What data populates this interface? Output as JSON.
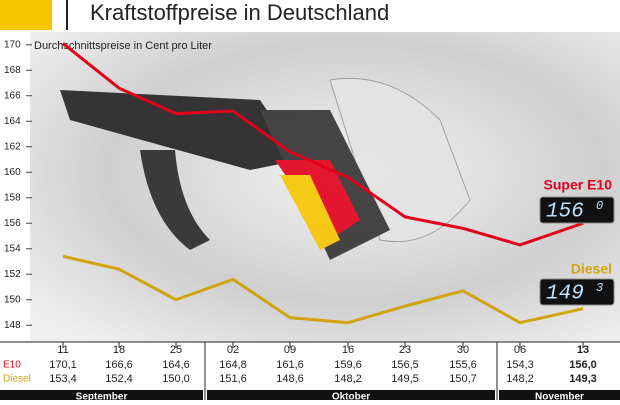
{
  "chart_data": {
    "type": "line",
    "title": "Kraftstoffpreise in Deutschland",
    "subtitle": "Durchschnittspreise in Cent pro Liter",
    "categories": [
      "11",
      "18",
      "25",
      "02",
      "09",
      "16",
      "23",
      "30",
      "06",
      "13"
    ],
    "months": [
      "September",
      "Oktober",
      "November"
    ],
    "ylim": [
      147,
      171
    ],
    "yticks": [
      148,
      150,
      152,
      154,
      156,
      158,
      160,
      162,
      164,
      166,
      168,
      170
    ],
    "series": [
      {
        "name": "Super E10",
        "short_name": "E10",
        "color": "#e2001a",
        "values": [
          170.1,
          166.6,
          164.6,
          164.8,
          161.6,
          159.6,
          156.5,
          155.6,
          154.3,
          156.0
        ],
        "value_labels": [
          "170,1",
          "166,6",
          "164,6",
          "164,8",
          "161,6",
          "159,6",
          "156,5",
          "155,6",
          "154,3",
          "156,0"
        ],
        "display": [
          "156",
          "0"
        ]
      },
      {
        "name": "Diesel",
        "short_name": "Diesel",
        "color": "#d2a30f",
        "values": [
          153.4,
          152.4,
          150.0,
          151.6,
          148.6,
          148.2,
          149.5,
          150.7,
          148.2,
          149.3
        ],
        "value_labels": [
          "153,4",
          "152,4",
          "150,0",
          "151,6",
          "148,6",
          "148,2",
          "149,5",
          "150,7",
          "148,2",
          "149,3"
        ],
        "display": [
          "149",
          "3"
        ]
      }
    ]
  }
}
